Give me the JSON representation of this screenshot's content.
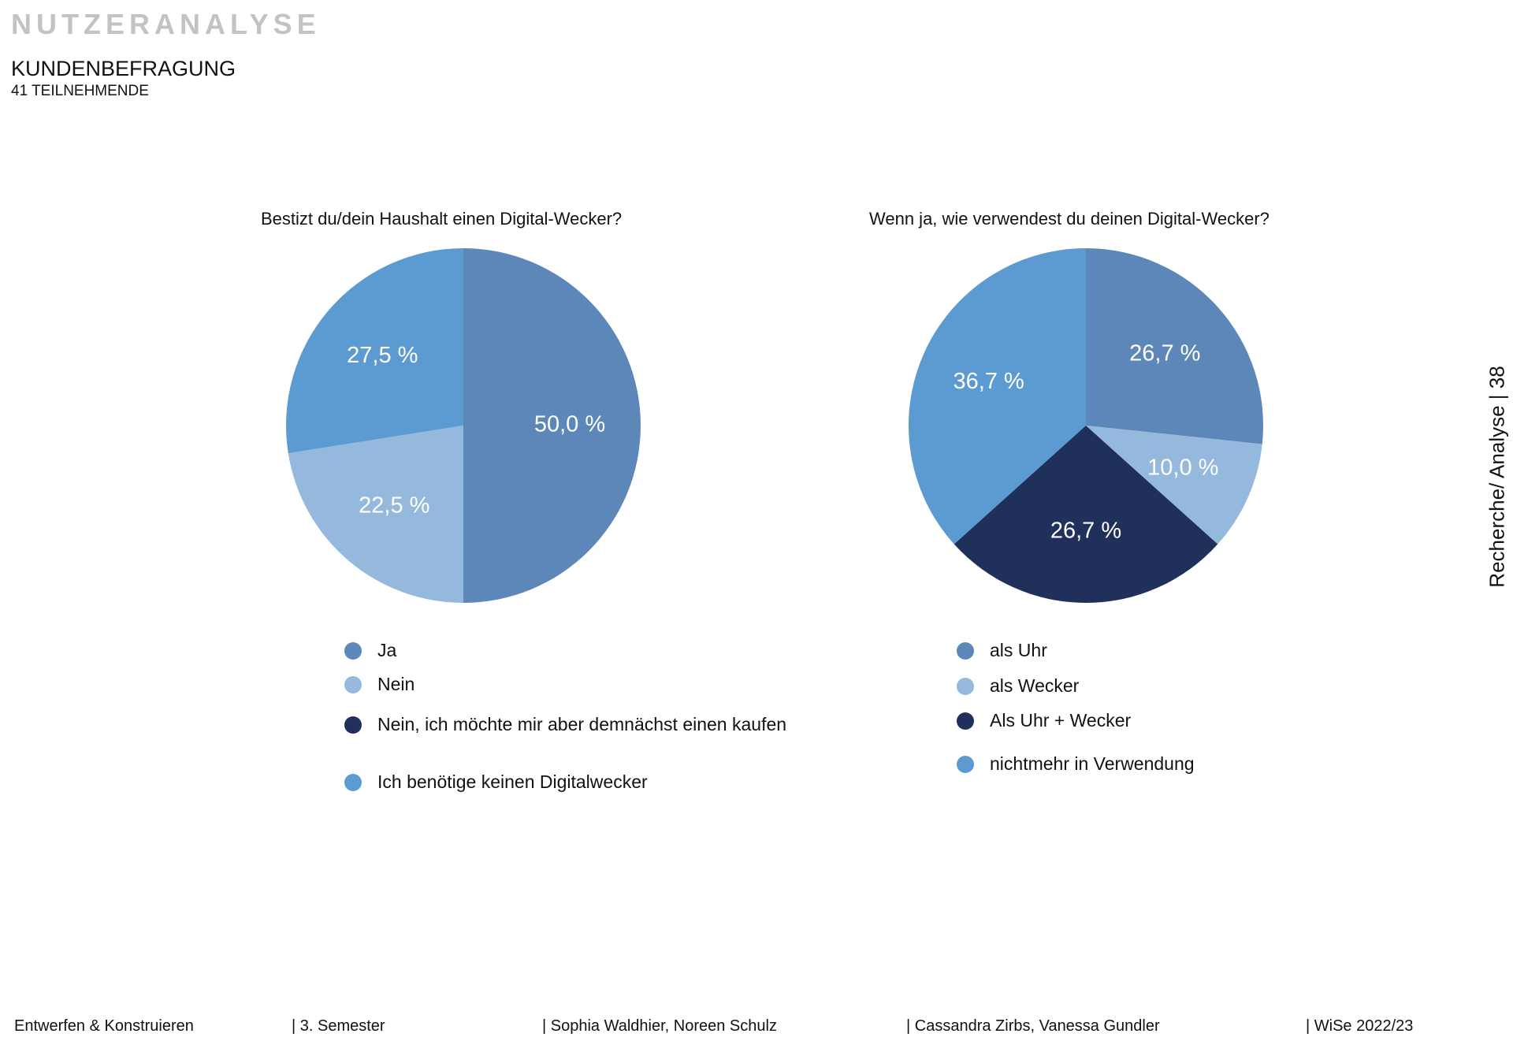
{
  "header": {
    "kicker": "NUTZERANALYSE",
    "title": "KUNDENBEFRAGUNG",
    "subtitle": "41 TEILNEHMENDE"
  },
  "side_label": "Recherche/ Analyse | 38",
  "colors": {
    "mid_blue": "#5d87b8",
    "light_blue": "#95b9dc",
    "navy": "#1f305b",
    "sky_blue": "#5b9bd1"
  },
  "chart_data": [
    {
      "type": "pie",
      "title": "Bestizt du/dein Haushalt einen Digital-Wecker?",
      "slices": [
        {
          "label": "Ja",
          "value": 50.0,
          "display": "50,0 %",
          "color": "#5d87b8"
        },
        {
          "label": "Nein",
          "value": 22.5,
          "display": "22,5 %",
          "color": "#95b9dc"
        },
        {
          "label": "Nein, ich möchte mir aber demnächst einen kaufen",
          "value": 0,
          "display": "",
          "color": "#1f305b"
        },
        {
          "label": "Ich benötige keinen Digitalwecker",
          "value": 27.5,
          "display": "27,5 %",
          "color": "#5b9bd1"
        }
      ]
    },
    {
      "type": "pie",
      "title": "Wenn ja, wie verwendest du deinen Digital-Wecker?",
      "slices": [
        {
          "label": "als Uhr",
          "value": 26.7,
          "display": "26,7 %",
          "color": "#5d87b8"
        },
        {
          "label": "als Wecker",
          "value": 10.0,
          "display": "10,0 %",
          "color": "#95b9dc"
        },
        {
          "label": "Als Uhr + Wecker",
          "value": 26.7,
          "display": "26,7 %",
          "color": "#1f305b"
        },
        {
          "label": "nichtmehr in Verwendung",
          "value": 36.7,
          "display": "36,7 %",
          "color": "#5b9bd1"
        }
      ]
    }
  ],
  "footer": [
    "Entwerfen & Konstruieren",
    "|  3. Semester",
    "| Sophia Waldhier, Noreen Schulz",
    "| Cassandra Zirbs, Vanessa Gundler",
    "| WiSe 2022/23"
  ]
}
